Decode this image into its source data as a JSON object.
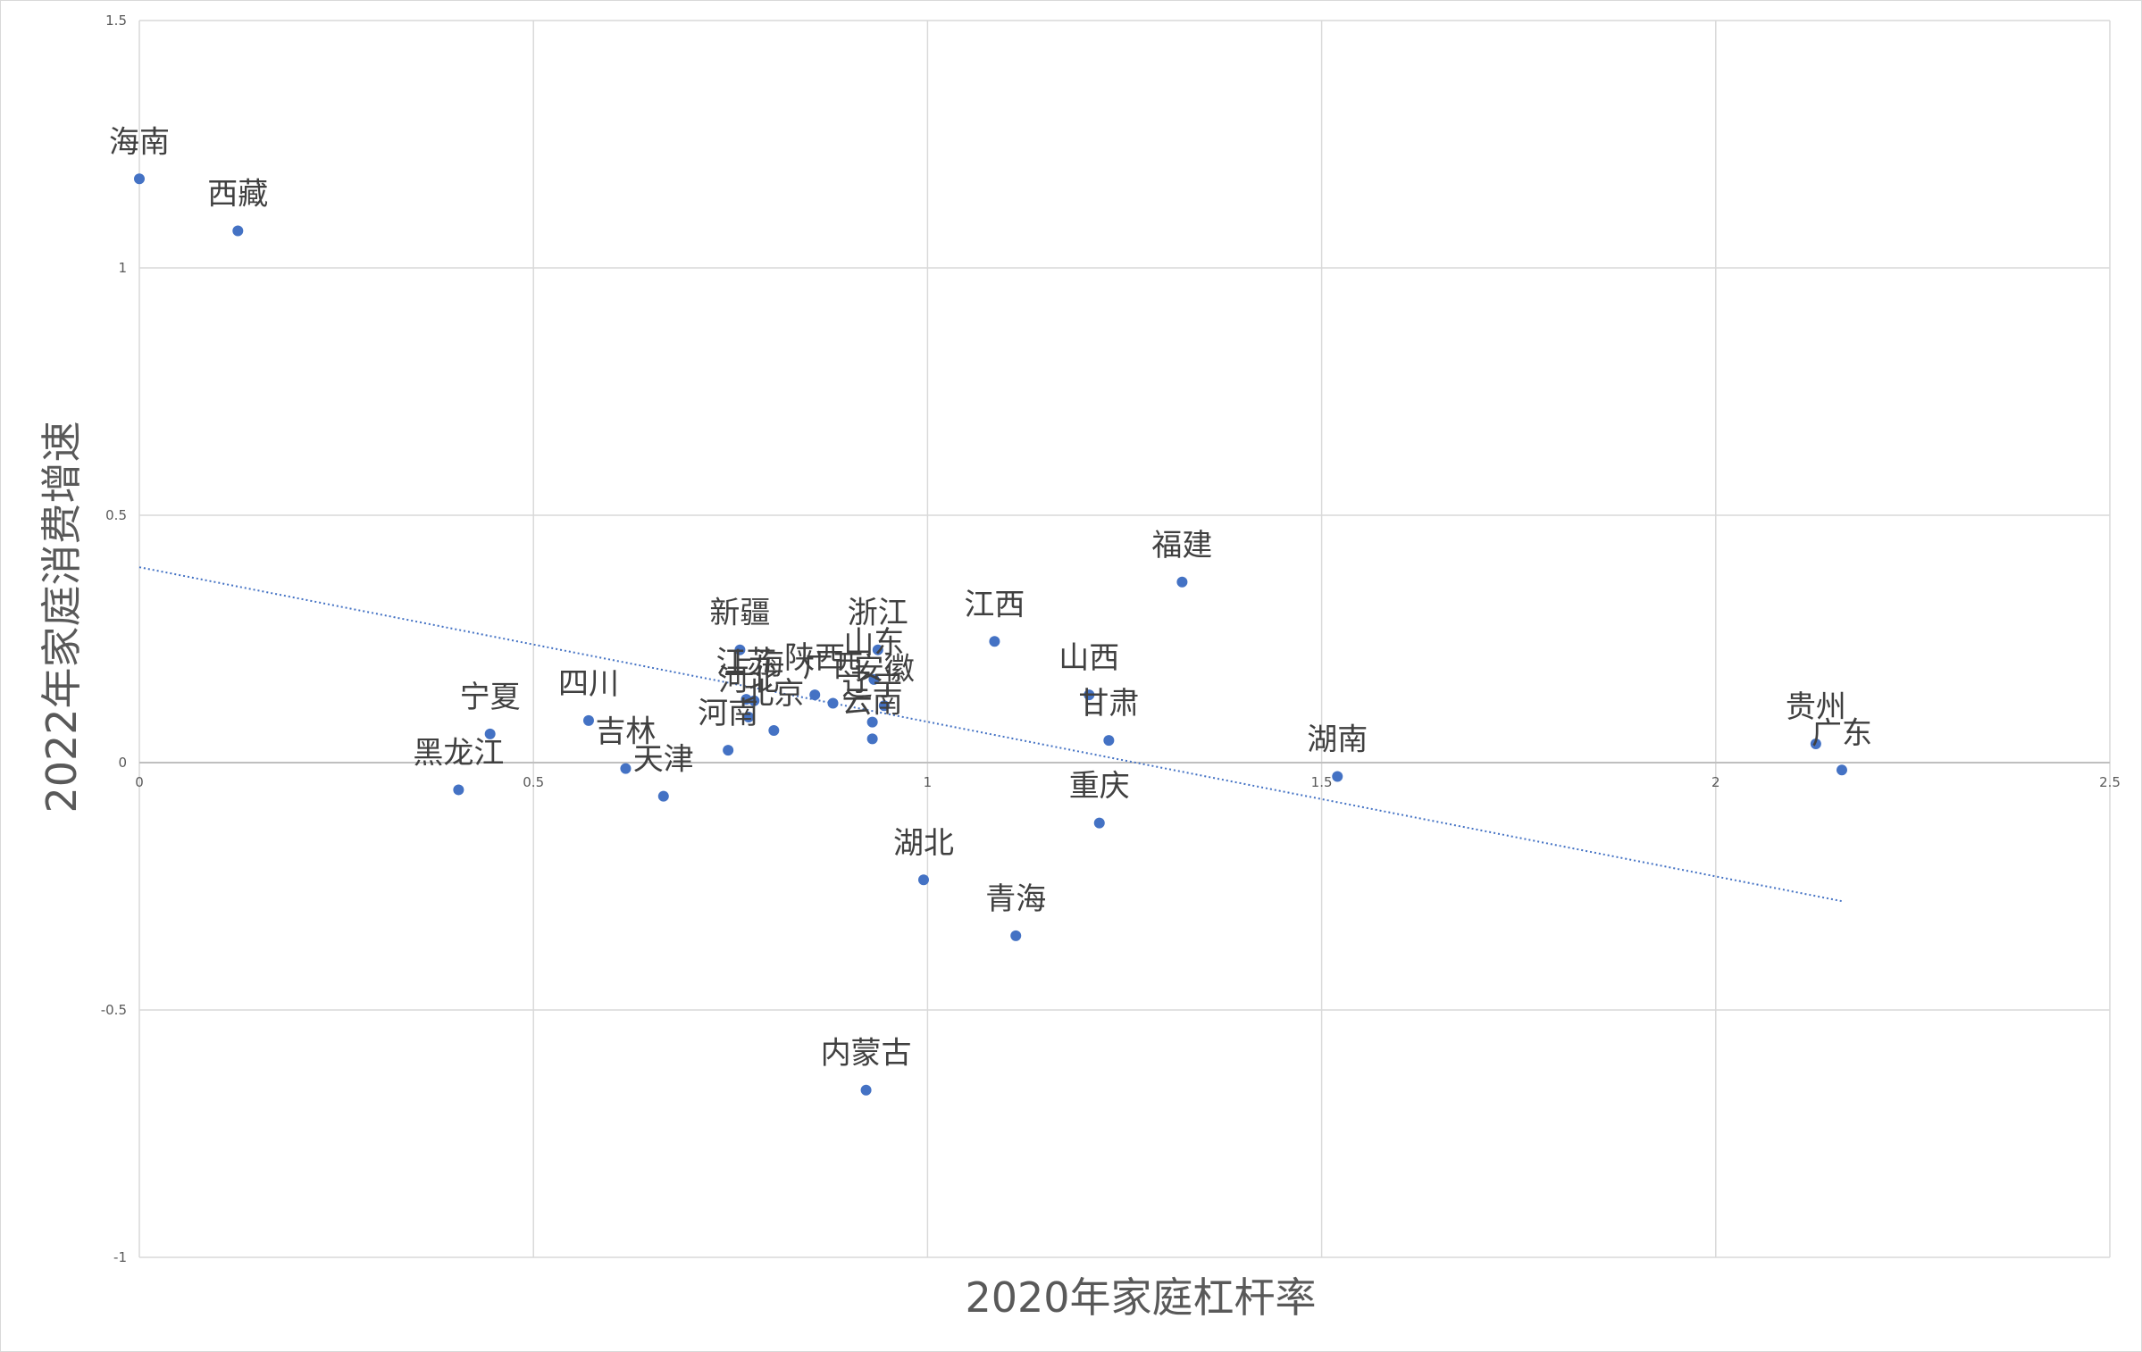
{
  "chart_data": {
    "type": "scatter",
    "title": "",
    "xlabel": "2020年家庭杠杆率",
    "ylabel": "2022年家庭消费增速",
    "xlim": [
      0,
      2.5
    ],
    "ylim": [
      -1,
      1.5
    ],
    "x_ticks": [
      0,
      0.5,
      1,
      1.5,
      2,
      2.5
    ],
    "y_ticks": [
      -1,
      -0.5,
      0,
      0.5,
      1,
      1.5
    ],
    "x_tick_labels": [
      "0",
      "0.5",
      "1",
      "1.5",
      "2",
      "2.5"
    ],
    "y_tick_labels": [
      "-1",
      "-0.5",
      "0",
      "0.5",
      "1",
      "1.5"
    ],
    "grid": true,
    "legend": "none",
    "point_color": "#4472c4",
    "trendline": {
      "type": "linear",
      "style": "dotted",
      "color": "#4472c4",
      "x": [
        0,
        2.16
      ],
      "y": [
        0.395,
        -0.28
      ]
    },
    "points": [
      {
        "label": "海南",
        "x": 0.0,
        "y": 1.18
      },
      {
        "label": "西藏",
        "x": 0.125,
        "y": 1.075
      },
      {
        "label": "宁夏",
        "x": 0.445,
        "y": 0.058
      },
      {
        "label": "黑龙江",
        "x": 0.405,
        "y": -0.055
      },
      {
        "label": "四川",
        "x": 0.57,
        "y": 0.085
      },
      {
        "label": "吉林",
        "x": 0.617,
        "y": -0.012
      },
      {
        "label": "天津",
        "x": 0.665,
        "y": -0.068
      },
      {
        "label": "江苏",
        "x": 0.77,
        "y": 0.128
      },
      {
        "label": "河北",
        "x": 0.773,
        "y": 0.092
      },
      {
        "label": "河南",
        "x": 0.747,
        "y": 0.025
      },
      {
        "label": "新疆",
        "x": 0.762,
        "y": 0.228
      },
      {
        "label": "上海",
        "x": 0.78,
        "y": 0.125
      },
      {
        "label": "北京",
        "x": 0.805,
        "y": 0.065
      },
      {
        "label": "陕西",
        "x": 0.857,
        "y": 0.137
      },
      {
        "label": "广西",
        "x": 0.88,
        "y": 0.12
      },
      {
        "label": "浙江",
        "x": 0.937,
        "y": 0.228
      },
      {
        "label": "山东",
        "x": 0.932,
        "y": 0.168
      },
      {
        "label": "安徽",
        "x": 0.945,
        "y": 0.115
      },
      {
        "label": "辽宁",
        "x": 0.93,
        "y": 0.082
      },
      {
        "label": "云南",
        "x": 0.93,
        "y": 0.048
      },
      {
        "label": "湖北",
        "x": 0.995,
        "y": -0.237
      },
      {
        "label": "内蒙古",
        "x": 0.922,
        "y": -0.662
      },
      {
        "label": "江西",
        "x": 1.085,
        "y": 0.245
      },
      {
        "label": "青海",
        "x": 1.112,
        "y": -0.35
      },
      {
        "label": "山西",
        "x": 1.205,
        "y": 0.137
      },
      {
        "label": "甘肃",
        "x": 1.23,
        "y": 0.045
      },
      {
        "label": "重庆",
        "x": 1.218,
        "y": -0.122
      },
      {
        "label": "福建",
        "x": 1.323,
        "y": 0.365
      },
      {
        "label": "湖南",
        "x": 1.52,
        "y": -0.028
      },
      {
        "label": "贵州",
        "x": 2.127,
        "y": 0.038
      },
      {
        "label": "广东",
        "x": 2.16,
        "y": -0.015
      }
    ]
  }
}
